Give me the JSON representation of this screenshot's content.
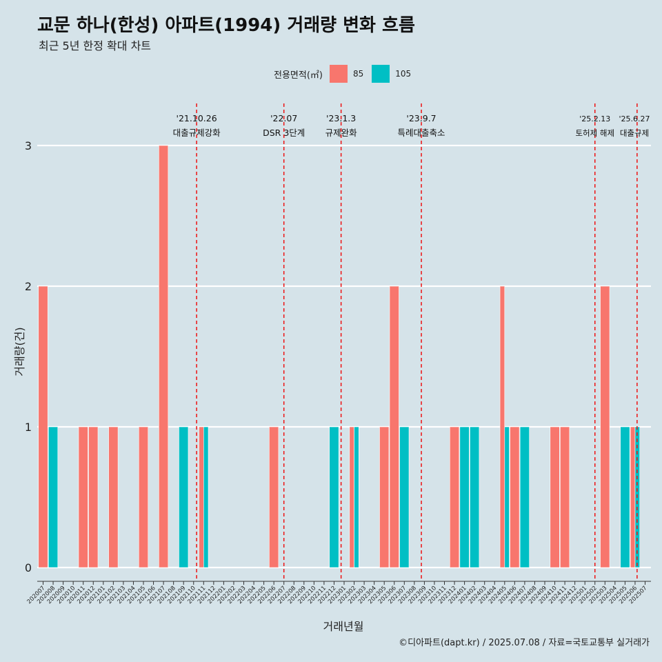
{
  "chart_data": {
    "type": "bar",
    "title": "교문 하나(한성) 아파트(1994) 거래량 변화 흐름",
    "subtitle": "최근 5년 한정 확대 차트",
    "xlabel": "거래년월",
    "ylabel": "거래량(건)",
    "ylim": [
      0,
      3
    ],
    "yticks": [
      "0",
      "1",
      "2",
      "3"
    ],
    "grid": true,
    "legend": {
      "title": "전용면적(㎡)",
      "position": "top"
    },
    "categories": [
      "202007",
      "202008",
      "202009",
      "202010",
      "202011",
      "202012",
      "202101",
      "202102",
      "202103",
      "202104",
      "202105",
      "202106",
      "202107",
      "202108",
      "202109",
      "202110",
      "202111",
      "202112",
      "202201",
      "202202",
      "202203",
      "202204",
      "202205",
      "202206",
      "202207",
      "202208",
      "202209",
      "202210",
      "202211",
      "202212",
      "202301",
      "202302",
      "202303",
      "202304",
      "202305",
      "202306",
      "202307",
      "202308",
      "202309",
      "202310",
      "202311",
      "202312",
      "202401",
      "202402",
      "202403",
      "202404",
      "202405",
      "202406",
      "202407",
      "202408",
      "202409",
      "202410",
      "202411",
      "202412",
      "202501",
      "202502",
      "202503",
      "202504",
      "202505",
      "202506",
      "202507"
    ],
    "series": [
      {
        "name": "85",
        "color": "#f8766d",
        "values": [
          2,
          0,
          0,
          0,
          1,
          1,
          0,
          1,
          0,
          0,
          1,
          0,
          3,
          0,
          0,
          0,
          1,
          0,
          0,
          0,
          0,
          0,
          0,
          1,
          0,
          0,
          0,
          0,
          0,
          0,
          0,
          1,
          0,
          0,
          1,
          2,
          0,
          0,
          0,
          0,
          0,
          1,
          0,
          0,
          0,
          0,
          2,
          1,
          0,
          0,
          0,
          1,
          1,
          0,
          0,
          0,
          2,
          0,
          0,
          1,
          0
        ]
      },
      {
        "name": "105",
        "color": "#00bfc4",
        "values": [
          0,
          1,
          0,
          0,
          0,
          0,
          0,
          0,
          0,
          0,
          0,
          0,
          0,
          0,
          1,
          0,
          1,
          0,
          0,
          0,
          0,
          0,
          0,
          0,
          0,
          0,
          0,
          0,
          0,
          1,
          0,
          1,
          0,
          0,
          0,
          0,
          1,
          0,
          0,
          0,
          0,
          0,
          1,
          1,
          0,
          0,
          1,
          0,
          1,
          0,
          0,
          0,
          0,
          0,
          0,
          0,
          0,
          0,
          1,
          1,
          0
        ]
      }
    ],
    "annotations": [
      {
        "x": "202110",
        "date": "'21.10.26",
        "label": "대출규제강화"
      },
      {
        "x": "202207",
        "date": "'22.07",
        "label": "DSR 3단계"
      },
      {
        "x": "202301",
        "date": "'23.1.3",
        "label": "규제완화"
      },
      {
        "x": "202309",
        "date": "'23.9.7",
        "label": "특례대출축소"
      },
      {
        "x": "202502",
        "date": "'25.2.13",
        "label": "토허제 해제"
      },
      {
        "x": "202506",
        "date": "'25.6.27",
        "label": "대출규제"
      }
    ]
  },
  "caption": "©디아파트(dapt.kr) / 2025.07.08 / 자료=국토교통부 실거래가"
}
